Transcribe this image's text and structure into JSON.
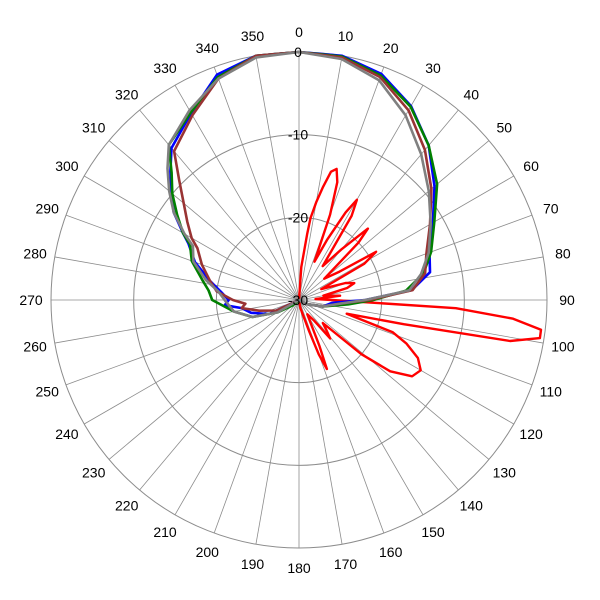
{
  "chart_data": {
    "type": "polar-line",
    "title": "",
    "angle_ticks": [
      "0",
      "10",
      "20",
      "30",
      "40",
      "50",
      "60",
      "70",
      "80",
      "90",
      "100",
      "110",
      "120",
      "130",
      "140",
      "150",
      "160",
      "170",
      "180",
      "190",
      "200",
      "210",
      "220",
      "230",
      "240",
      "250",
      "260",
      "270",
      "280",
      "290",
      "300",
      "310",
      "320",
      "330",
      "340",
      "350"
    ],
    "angle_direction": "clockwise",
    "angle_zero": "top",
    "radial_ticks": [
      "0",
      "-10",
      "-20",
      "-30"
    ],
    "radial_range": [
      -30,
      0
    ],
    "grid": true,
    "legend": "none",
    "series": [
      {
        "color": "#ff0000",
        "points": [
          [
            0,
            -30
          ],
          [
            4,
            -26
          ],
          [
            7,
            -22
          ],
          [
            8,
            -20
          ],
          [
            10,
            -18
          ],
          [
            12,
            -16
          ],
          [
            14,
            -14
          ],
          [
            16,
            -13.5
          ],
          [
            18,
            -15
          ],
          [
            20,
            -19
          ],
          [
            22,
            -25
          ],
          [
            25,
            -22
          ],
          [
            28,
            -18
          ],
          [
            30,
            -16
          ],
          [
            32,
            -18
          ],
          [
            35,
            -25
          ],
          [
            40,
            -22
          ],
          [
            44,
            -18
          ],
          [
            46,
            -20
          ],
          [
            50,
            -26
          ],
          [
            55,
            -24
          ],
          [
            58,
            -19
          ],
          [
            61,
            -21
          ],
          [
            64,
            -27
          ],
          [
            70,
            -24
          ],
          [
            73,
            -23
          ],
          [
            76,
            -24
          ],
          [
            80,
            -27
          ],
          [
            84,
            -25
          ],
          [
            87,
            -28
          ],
          [
            90,
            -26
          ],
          [
            93,
            -11
          ],
          [
            95,
            -4
          ],
          [
            97,
            -0.5
          ],
          [
            99,
            -0.5
          ],
          [
            101,
            -4
          ],
          [
            103,
            -17
          ],
          [
            106,
            -24
          ],
          [
            109,
            -18
          ],
          [
            112,
            -16
          ],
          [
            116,
            -14
          ],
          [
            120,
            -13
          ],
          [
            124,
            -13.5
          ],
          [
            128,
            -16
          ],
          [
            131,
            -20
          ],
          [
            134,
            -26
          ],
          [
            138,
            -25
          ],
          [
            141,
            -24
          ],
          [
            144,
            -27
          ],
          [
            150,
            -28
          ],
          [
            156,
            -24
          ],
          [
            158,
            -21
          ],
          [
            160,
            -23
          ],
          [
            162,
            -26
          ],
          [
            170,
            -29
          ],
          [
            180,
            -30
          ]
        ]
      },
      {
        "color": "#0000ff",
        "points": [
          [
            0,
            0
          ],
          [
            10,
            0
          ],
          [
            20,
            -0.9
          ],
          [
            30,
            -2.9
          ],
          [
            40,
            -5.6
          ],
          [
            50,
            -8.6
          ],
          [
            60,
            -11.3
          ],
          [
            70,
            -13.2
          ],
          [
            78,
            -13.8
          ],
          [
            85,
            -16.3
          ],
          [
            90,
            -22
          ],
          [
            95,
            -26
          ],
          [
            105,
            -27
          ],
          [
            120,
            -29
          ],
          [
            180,
            -30
          ],
          [
            230,
            -30
          ],
          [
            245,
            -26
          ],
          [
            255,
            -24
          ],
          [
            262,
            -23
          ],
          [
            266,
            -21
          ],
          [
            270,
            -21.5
          ],
          [
            276,
            -20.5
          ],
          [
            282,
            -19
          ],
          [
            290,
            -16.6
          ],
          [
            297,
            -15
          ],
          [
            300,
            -13.8
          ],
          [
            305,
            -11.5
          ],
          [
            310,
            -9.8
          ],
          [
            315,
            -8
          ],
          [
            320,
            -6
          ],
          [
            330,
            -3.9
          ],
          [
            340,
            -1
          ],
          [
            350,
            0
          ]
        ]
      },
      {
        "color": "#008000",
        "points": [
          [
            0,
            0
          ],
          [
            10,
            -0.1
          ],
          [
            20,
            -1.1
          ],
          [
            30,
            -3
          ],
          [
            40,
            -5.6
          ],
          [
            50,
            -8.2
          ],
          [
            60,
            -11.1
          ],
          [
            70,
            -13
          ],
          [
            78,
            -14.6
          ],
          [
            85,
            -17
          ],
          [
            90,
            -21
          ],
          [
            95,
            -24
          ],
          [
            105,
            -27
          ],
          [
            120,
            -29
          ],
          [
            180,
            -30
          ],
          [
            230,
            -29
          ],
          [
            240,
            -27
          ],
          [
            250,
            -24
          ],
          [
            260,
            -22
          ],
          [
            270,
            -19.5
          ],
          [
            276,
            -19
          ],
          [
            282,
            -18
          ],
          [
            290,
            -16.2
          ],
          [
            297,
            -15.2
          ],
          [
            300,
            -13.8
          ],
          [
            305,
            -12
          ],
          [
            310,
            -10
          ],
          [
            315,
            -8.2
          ],
          [
            320,
            -5.5
          ],
          [
            330,
            -3.8
          ],
          [
            340,
            -1.3
          ],
          [
            350,
            0
          ]
        ]
      },
      {
        "color": "#993333",
        "points": [
          [
            0,
            0
          ],
          [
            10,
            -0.2
          ],
          [
            20,
            -1.3
          ],
          [
            30,
            -3.5
          ],
          [
            40,
            -6.3
          ],
          [
            50,
            -9.1
          ],
          [
            60,
            -11.7
          ],
          [
            70,
            -13.6
          ],
          [
            78,
            -14.4
          ],
          [
            85,
            -16.2
          ],
          [
            90,
            -21.5
          ],
          [
            95,
            -25
          ],
          [
            105,
            -27
          ],
          [
            120,
            -29
          ],
          [
            180,
            -30
          ],
          [
            230,
            -30
          ],
          [
            245,
            -27
          ],
          [
            255,
            -25
          ],
          [
            262,
            -23
          ],
          [
            266,
            -23.5
          ],
          [
            270,
            -22
          ],
          [
            276,
            -20
          ],
          [
            282,
            -19
          ],
          [
            290,
            -17.5
          ],
          [
            297,
            -16.2
          ],
          [
            300,
            -15
          ],
          [
            305,
            -13.5
          ],
          [
            310,
            -11.8
          ],
          [
            315,
            -9.5
          ],
          [
            320,
            -6.5
          ],
          [
            330,
            -4.2
          ],
          [
            340,
            -1.5
          ],
          [
            350,
            0
          ]
        ]
      },
      {
        "color": "#808080",
        "points": [
          [
            0,
            0
          ],
          [
            10,
            -0.4
          ],
          [
            20,
            -1.7
          ],
          [
            30,
            -4.2
          ],
          [
            40,
            -7
          ],
          [
            50,
            -9.5
          ],
          [
            60,
            -11.6
          ],
          [
            70,
            -13.3
          ],
          [
            78,
            -14.9
          ],
          [
            85,
            -16.6
          ],
          [
            90,
            -22
          ],
          [
            95,
            -25
          ],
          [
            105,
            -27
          ],
          [
            120,
            -29
          ],
          [
            180,
            -30
          ],
          [
            230,
            -30
          ],
          [
            240,
            -27
          ],
          [
            250,
            -24
          ],
          [
            260,
            -22
          ],
          [
            270,
            -21
          ],
          [
            276,
            -20.2
          ],
          [
            282,
            -18.5
          ],
          [
            290,
            -16.4
          ],
          [
            297,
            -15.6
          ],
          [
            300,
            -14
          ],
          [
            305,
            -11.5
          ],
          [
            310,
            -9.5
          ],
          [
            315,
            -7.5
          ],
          [
            320,
            -5.5
          ],
          [
            330,
            -3.5
          ],
          [
            340,
            -1.5
          ],
          [
            350,
            -0.2
          ]
        ]
      }
    ]
  }
}
